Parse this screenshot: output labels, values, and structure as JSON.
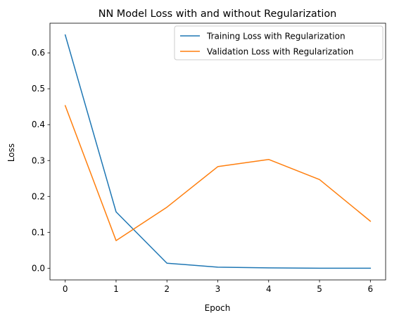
{
  "chart_data": {
    "type": "line",
    "title": "NN Model Loss with and without Regularization",
    "xlabel": "Epoch",
    "ylabel": "Loss",
    "x": [
      0,
      1,
      2,
      3,
      4,
      5,
      6
    ],
    "xticks": [
      "0",
      "1",
      "2",
      "3",
      "4",
      "5",
      "6"
    ],
    "yticks": [
      "0.0",
      "0.1",
      "0.2",
      "0.3",
      "0.4",
      "0.5",
      "0.6"
    ],
    "xlim": [
      -0.3,
      6.3
    ],
    "ylim": [
      -0.0326,
      0.6826
    ],
    "grid": false,
    "legend_position": "upper right",
    "series": [
      {
        "name": "Training Loss with Regularization",
        "color": "#1f77b4",
        "values": [
          0.65,
          0.157,
          0.014,
          0.003,
          0.001,
          0.0,
          0.0
        ]
      },
      {
        "name": "Validation Loss with Regularization",
        "color": "#ff7f0e",
        "values": [
          0.453,
          0.077,
          0.17,
          0.283,
          0.303,
          0.247,
          0.131
        ]
      }
    ]
  }
}
